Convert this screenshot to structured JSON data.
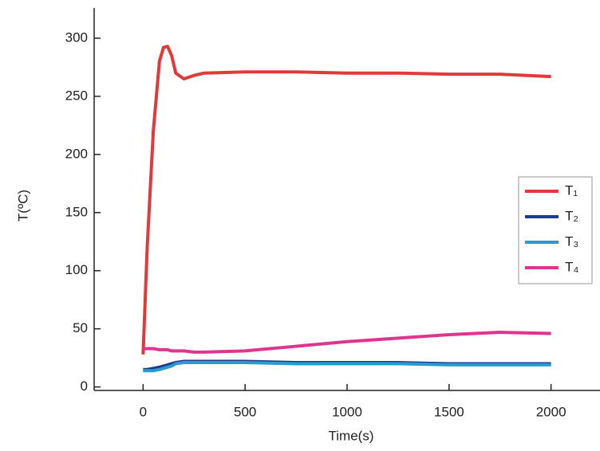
{
  "chart_data": {
    "type": "line",
    "xlabel": "Time(s)",
    "ylabel": "T(ºC)",
    "x": [
      0,
      20,
      50,
      80,
      100,
      120,
      140,
      160,
      200,
      250,
      300,
      500,
      750,
      1000,
      1250,
      1500,
      1750,
      2000
    ],
    "series": [
      {
        "name": "T₁",
        "color": "#e03a3a",
        "values": [
          28,
          120,
          220,
          280,
          292,
          293,
          285,
          270,
          265,
          268,
          270,
          271,
          271,
          270,
          270,
          269,
          269,
          267
        ]
      },
      {
        "name": "T₂",
        "color": "#1f3c8c",
        "values": [
          15,
          15,
          16,
          17,
          18,
          19,
          20,
          21,
          22,
          22,
          22,
          22,
          21,
          21,
          21,
          20,
          20,
          20
        ]
      },
      {
        "name": "T₃",
        "color": "#2a9bd0",
        "values": [
          14,
          14,
          14,
          15,
          16,
          17,
          18,
          20,
          21,
          21,
          21,
          21,
          20,
          20,
          20,
          19,
          19,
          19
        ]
      },
      {
        "name": "T₄",
        "color": "#e0358f",
        "values": [
          33,
          33,
          33,
          32,
          32,
          32,
          31,
          31,
          31,
          30,
          30,
          31,
          35,
          39,
          42,
          45,
          47,
          46
        ]
      }
    ],
    "xlim": [
      -240,
      2240
    ],
    "ylim": [
      -3,
      326
    ],
    "xticks": [
      0,
      500,
      1000,
      1500,
      2000
    ],
    "yticks": [
      0,
      50,
      100,
      150,
      200,
      250,
      300
    ],
    "legend": "right"
  }
}
